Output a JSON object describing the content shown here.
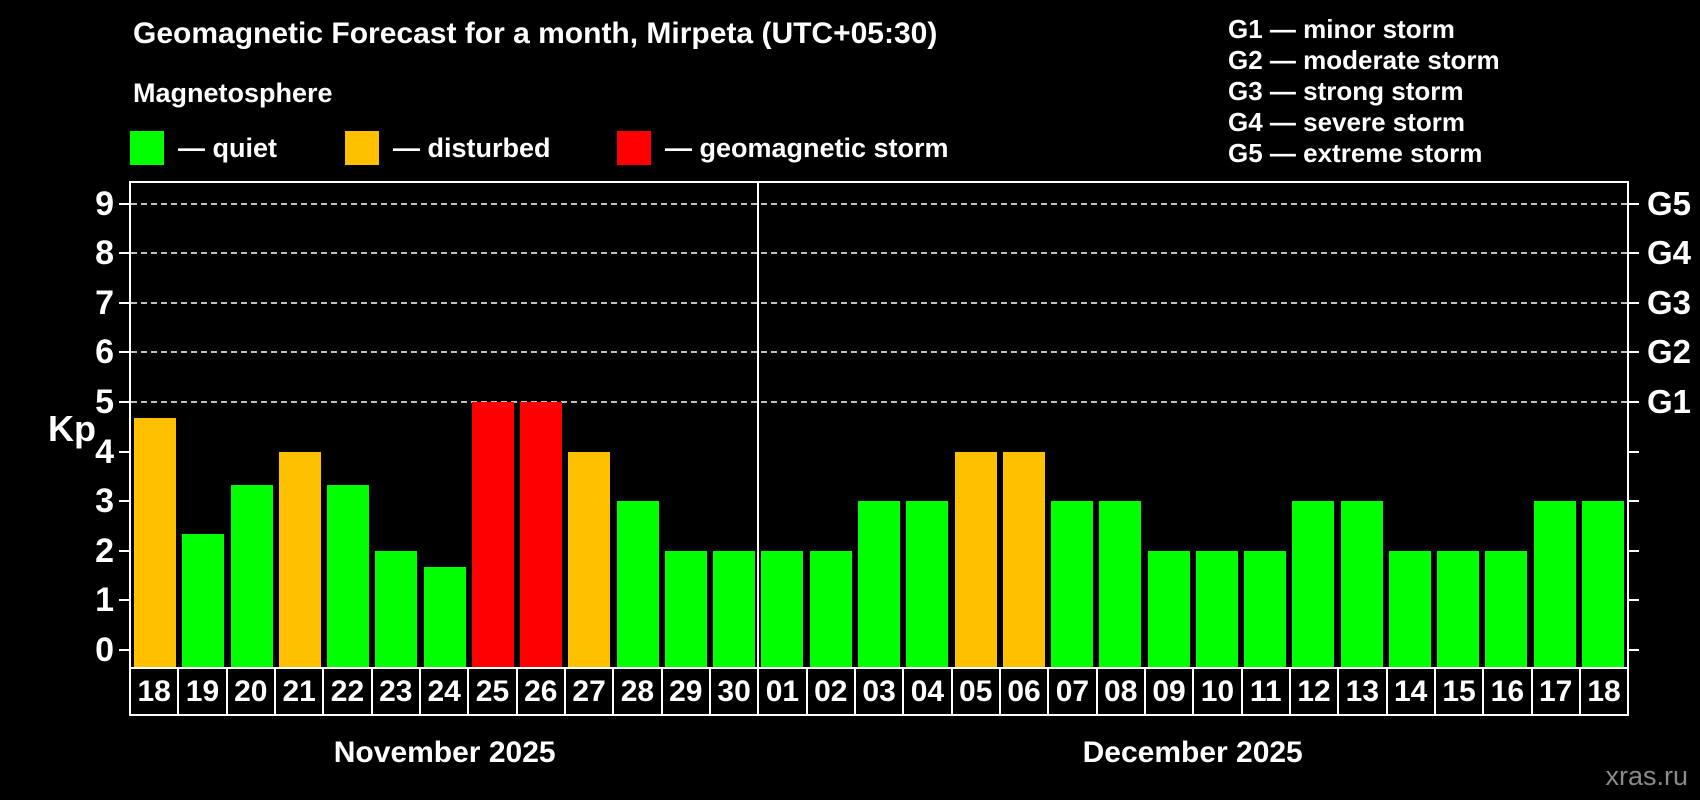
{
  "title": "Geomagnetic Forecast for a month, Mirpeta (UTC+05:30)",
  "subtitle": "Magnetosphere",
  "watermark": "xras.ru",
  "legend": {
    "items": [
      {
        "state": "quiet",
        "label": "— quiet",
        "color": "#00ff00"
      },
      {
        "state": "disturbed",
        "label": "— disturbed",
        "color": "#ffc000"
      },
      {
        "state": "storm",
        "label": "— geomagnetic storm",
        "color": "#ff0000"
      }
    ]
  },
  "g_legend": [
    {
      "label": "G1 — minor storm"
    },
    {
      "label": "G2 — moderate storm"
    },
    {
      "label": "G3 — strong storm"
    },
    {
      "label": "G4 — severe storm"
    },
    {
      "label": "G5 — extreme storm"
    }
  ],
  "chart_data": {
    "type": "bar",
    "title": "Geomagnetic Forecast for a month, Mirpeta (UTC+05:30)",
    "ylabel": "Kp",
    "ylim": [
      -0.35,
      9.4
    ],
    "yticks": [
      0,
      1,
      2,
      3,
      4,
      5,
      6,
      7,
      8,
      9
    ],
    "gridlines_at": [
      5,
      6,
      7,
      8,
      9
    ],
    "grid_style": "dashed",
    "right_axis": [
      {
        "kp": 5,
        "label": "G1"
      },
      {
        "kp": 6,
        "label": "G2"
      },
      {
        "kp": 7,
        "label": "G3"
      },
      {
        "kp": 8,
        "label": "G4"
      },
      {
        "kp": 9,
        "label": "G5"
      }
    ],
    "state_colors": {
      "quiet": "#00ff00",
      "disturbed": "#ffc000",
      "storm": "#ff0000"
    },
    "months": [
      {
        "label": "November 2025"
      },
      {
        "label": "December 2025"
      }
    ],
    "bars": [
      {
        "date": "18",
        "month": 0,
        "kp": 4.67,
        "state": "disturbed"
      },
      {
        "date": "19",
        "month": 0,
        "kp": 2.33,
        "state": "quiet"
      },
      {
        "date": "20",
        "month": 0,
        "kp": 3.33,
        "state": "quiet"
      },
      {
        "date": "21",
        "month": 0,
        "kp": 4.0,
        "state": "disturbed"
      },
      {
        "date": "22",
        "month": 0,
        "kp": 3.33,
        "state": "quiet"
      },
      {
        "date": "23",
        "month": 0,
        "kp": 2.0,
        "state": "quiet"
      },
      {
        "date": "24",
        "month": 0,
        "kp": 1.67,
        "state": "quiet"
      },
      {
        "date": "25",
        "month": 0,
        "kp": 5.0,
        "state": "storm"
      },
      {
        "date": "26",
        "month": 0,
        "kp": 5.0,
        "state": "storm"
      },
      {
        "date": "27",
        "month": 0,
        "kp": 4.0,
        "state": "disturbed"
      },
      {
        "date": "28",
        "month": 0,
        "kp": 3.0,
        "state": "quiet"
      },
      {
        "date": "29",
        "month": 0,
        "kp": 2.0,
        "state": "quiet"
      },
      {
        "date": "30",
        "month": 0,
        "kp": 2.0,
        "state": "quiet"
      },
      {
        "date": "01",
        "month": 1,
        "kp": 2.0,
        "state": "quiet"
      },
      {
        "date": "02",
        "month": 1,
        "kp": 2.0,
        "state": "quiet"
      },
      {
        "date": "03",
        "month": 1,
        "kp": 3.0,
        "state": "quiet"
      },
      {
        "date": "04",
        "month": 1,
        "kp": 3.0,
        "state": "quiet"
      },
      {
        "date": "05",
        "month": 1,
        "kp": 4.0,
        "state": "disturbed"
      },
      {
        "date": "06",
        "month": 1,
        "kp": 4.0,
        "state": "disturbed"
      },
      {
        "date": "07",
        "month": 1,
        "kp": 3.0,
        "state": "quiet"
      },
      {
        "date": "08",
        "month": 1,
        "kp": 3.0,
        "state": "quiet"
      },
      {
        "date": "09",
        "month": 1,
        "kp": 2.0,
        "state": "quiet"
      },
      {
        "date": "10",
        "month": 1,
        "kp": 2.0,
        "state": "quiet"
      },
      {
        "date": "11",
        "month": 1,
        "kp": 2.0,
        "state": "quiet"
      },
      {
        "date": "12",
        "month": 1,
        "kp": 3.0,
        "state": "quiet"
      },
      {
        "date": "13",
        "month": 1,
        "kp": 3.0,
        "state": "quiet"
      },
      {
        "date": "14",
        "month": 1,
        "kp": 2.0,
        "state": "quiet"
      },
      {
        "date": "15",
        "month": 1,
        "kp": 2.0,
        "state": "quiet"
      },
      {
        "date": "16",
        "month": 1,
        "kp": 2.0,
        "state": "quiet"
      },
      {
        "date": "17",
        "month": 1,
        "kp": 3.0,
        "state": "quiet"
      },
      {
        "date": "18",
        "month": 1,
        "kp": 3.0,
        "state": "quiet"
      }
    ]
  }
}
